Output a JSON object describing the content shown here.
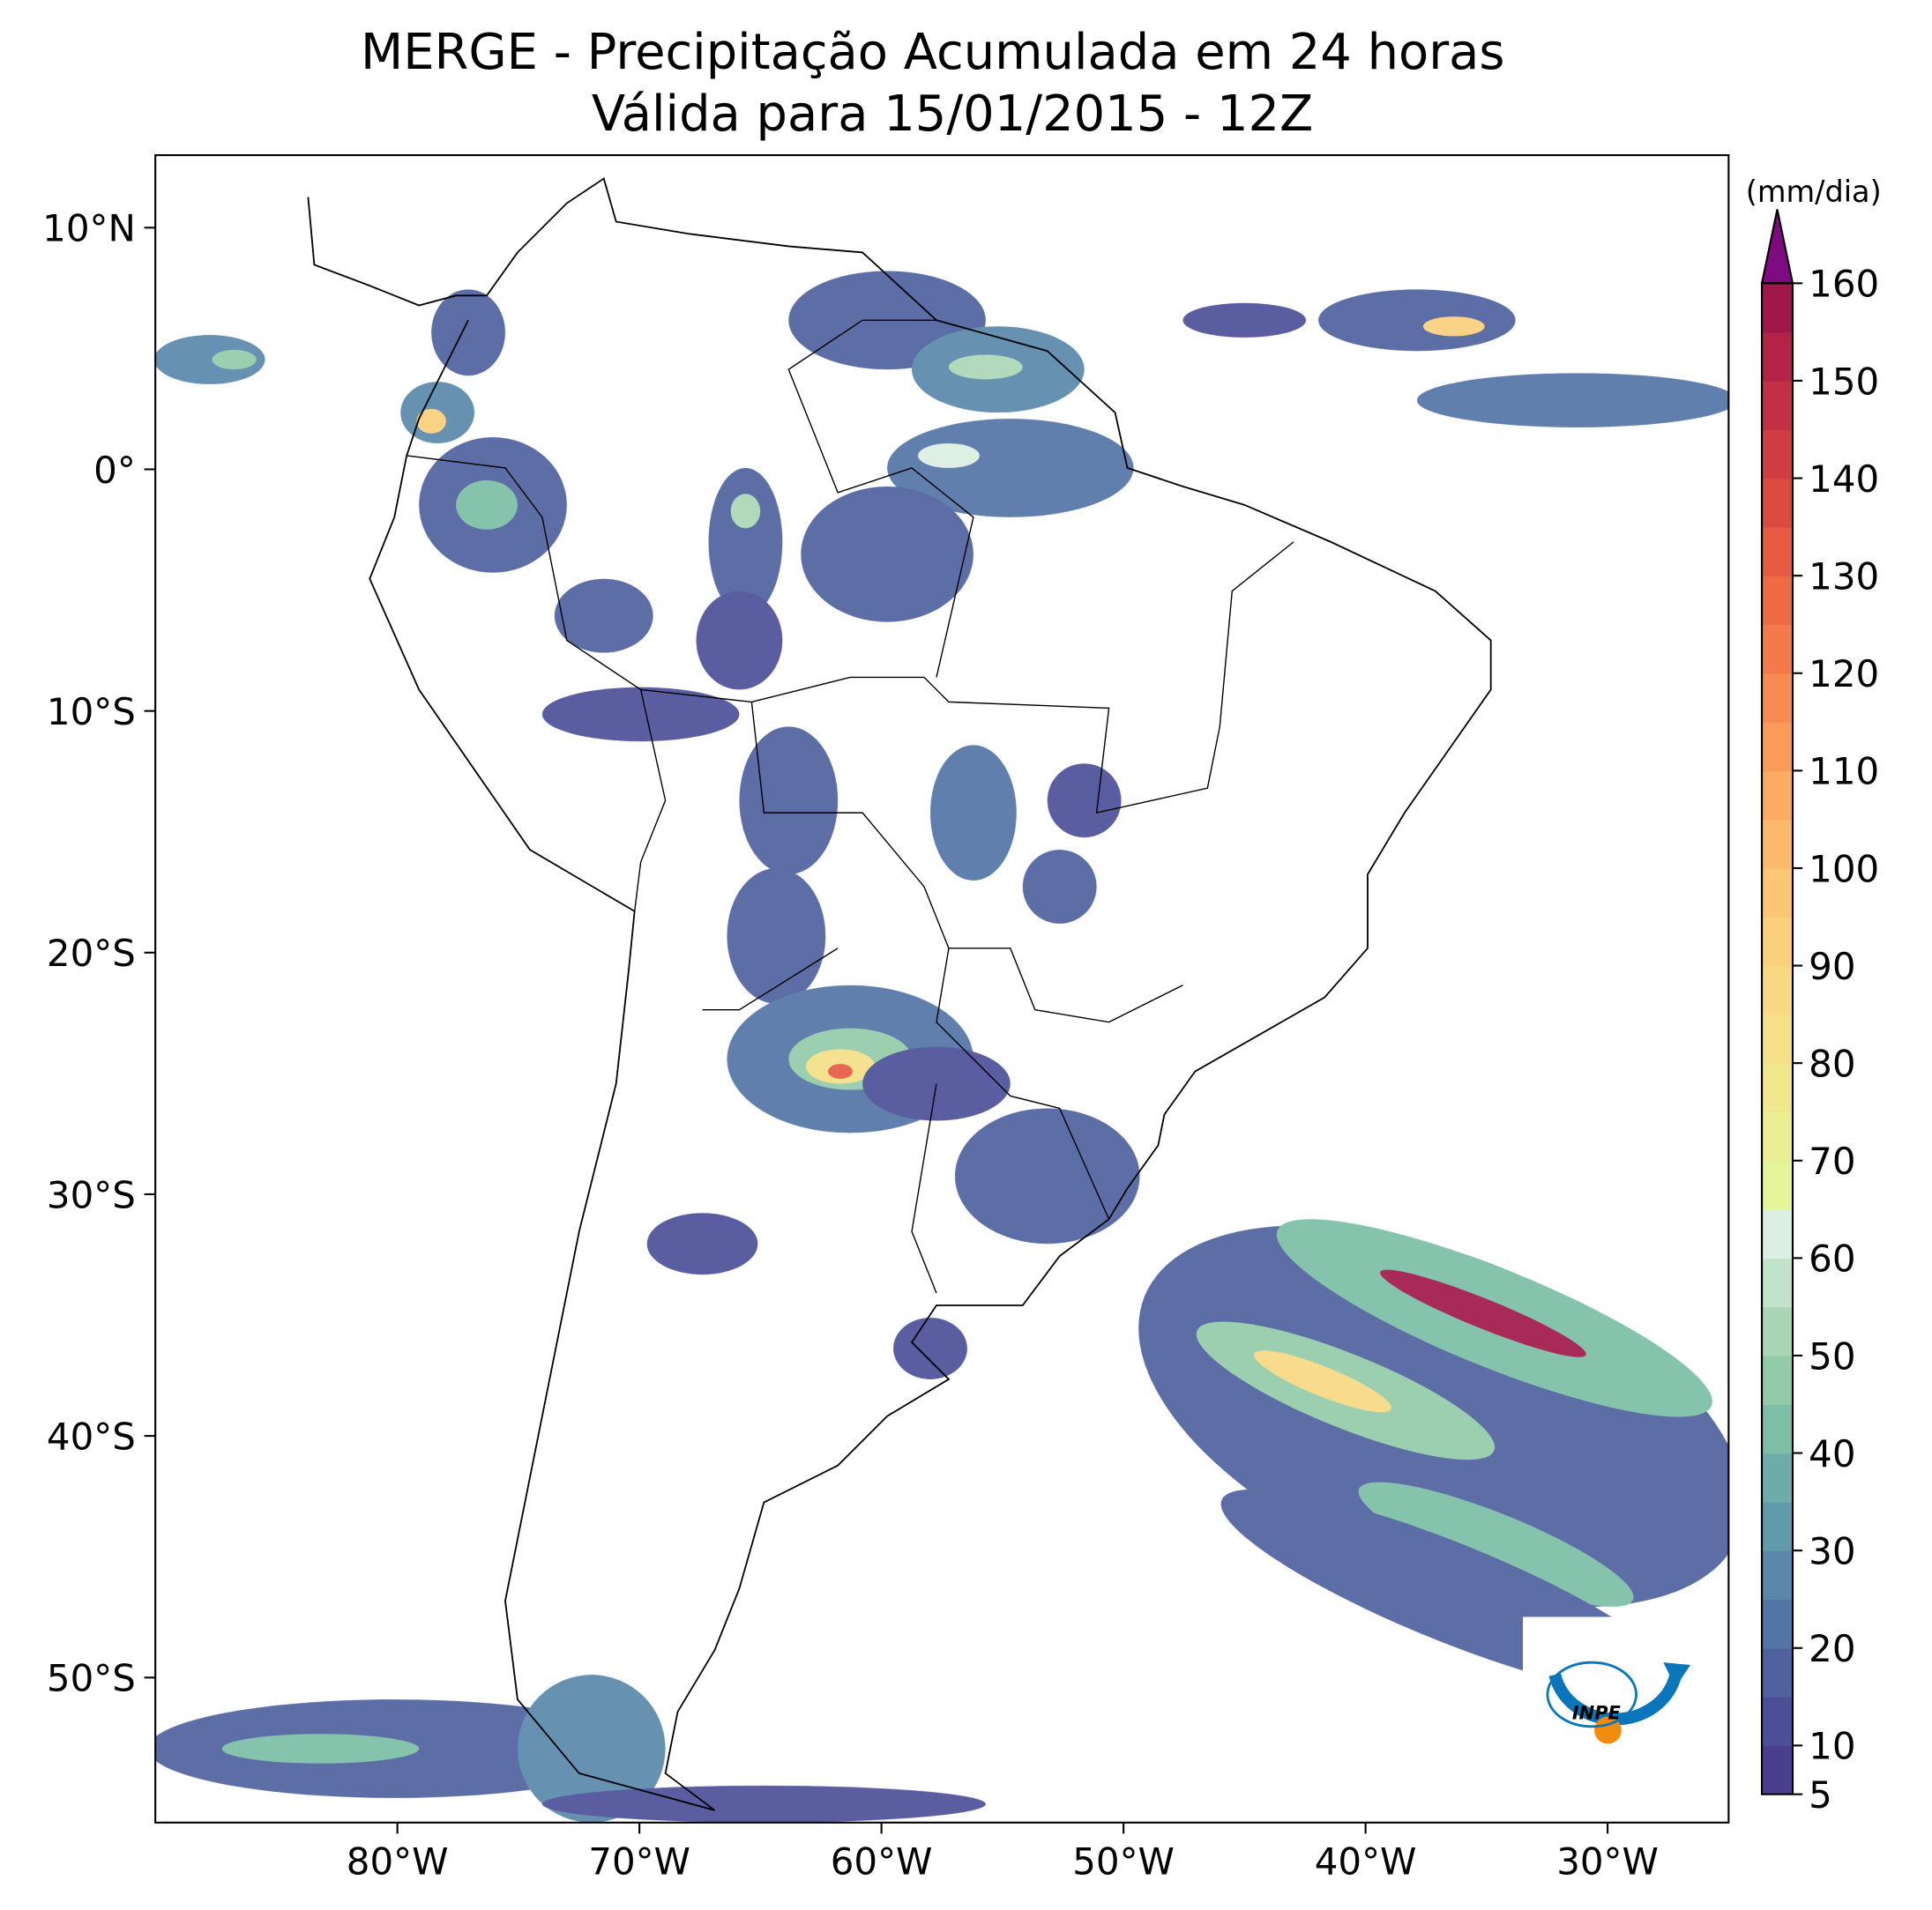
{
  "title": "MERGE - Precipitação Acumulada em 24 horas",
  "subtitle": "Válida para 15/01/2015 - 12Z",
  "map": {
    "xlim": [
      -90,
      -25
    ],
    "ylim": [
      -56,
      13
    ],
    "xticks": [
      {
        "value": -80,
        "label": "80°W"
      },
      {
        "value": -70,
        "label": "70°W"
      },
      {
        "value": -60,
        "label": "60°W"
      },
      {
        "value": -50,
        "label": "50°W"
      },
      {
        "value": -40,
        "label": "40°W"
      },
      {
        "value": -30,
        "label": "30°W"
      }
    ],
    "yticks": [
      {
        "value": 10,
        "label": "10°N"
      },
      {
        "value": 0,
        "label": "0°"
      },
      {
        "value": -10,
        "label": "10°S"
      },
      {
        "value": -20,
        "label": "20°S"
      },
      {
        "value": -30,
        "label": "30°S"
      },
      {
        "value": -40,
        "label": "40°S"
      },
      {
        "value": -50,
        "label": "50°S"
      }
    ]
  },
  "colorbar": {
    "label": "(mm/dia)",
    "ylim": [
      5,
      160
    ],
    "levels": [
      5,
      10,
      15,
      20,
      25,
      30,
      35,
      40,
      45,
      50,
      55,
      60,
      65,
      70,
      75,
      80,
      85,
      90,
      95,
      100,
      105,
      110,
      115,
      120,
      125,
      130,
      135,
      140,
      145,
      150,
      155,
      160
    ],
    "colors": [
      "#4a3f8f",
      "#4c4f98",
      "#4f619f",
      "#5374a6",
      "#5988ab",
      "#619bab",
      "#6cadaa",
      "#7cbea6",
      "#92cba8",
      "#aad6b5",
      "#c2e3cb",
      "#dbefe2",
      "#e6f59a",
      "#ebee93",
      "#f1e88d",
      "#f5e088",
      "#f8d883",
      "#fad07c",
      "#fcc675",
      "#fdba6c",
      "#fcab63",
      "#fb9b5a",
      "#f88b52",
      "#f47a4b",
      "#ee6a45",
      "#e65a42",
      "#dc4b40",
      "#cf3d42",
      "#c23045",
      "#b22347",
      "#a0174a"
    ],
    "extend_color": "#7e0b7f",
    "yticks": [
      5,
      10,
      20,
      30,
      40,
      50,
      60,
      70,
      80,
      90,
      100,
      110,
      120,
      130,
      140,
      150,
      160
    ]
  },
  "logo": "INPE"
}
